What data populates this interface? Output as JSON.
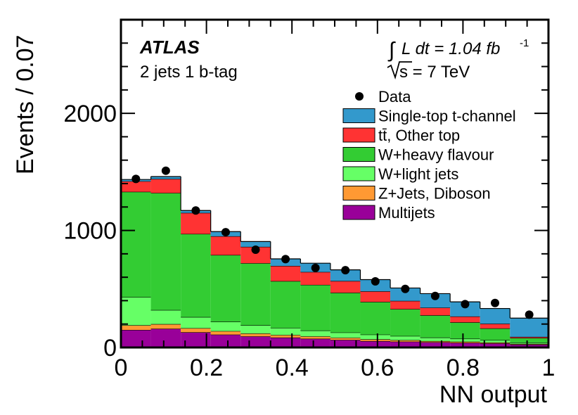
{
  "chart_data": {
    "type": "bar",
    "stacked": true,
    "histogram": true,
    "xlabel": "NN output",
    "ylabel": "Events / 0.07",
    "xlim": [
      0,
      1
    ],
    "ylim": [
      0,
      2800
    ],
    "xticks": [
      0,
      0.2,
      0.4,
      0.6,
      0.8,
      1
    ],
    "xtick_labels": [
      "0",
      "0.2",
      "0.4",
      "0.6",
      "0.8",
      "1"
    ],
    "yticks": [
      0,
      1000,
      2000
    ],
    "ytick_labels": [
      "0",
      "1000",
      "2000"
    ],
    "bin_edges": [
      0,
      0.07,
      0.14,
      0.21,
      0.28,
      0.35,
      0.42,
      0.49,
      0.56,
      0.63,
      0.7,
      0.77,
      0.84,
      0.91,
      1.0
    ],
    "series": [
      {
        "name": "Multijets",
        "color": "#990099",
        "values": [
          150,
          160,
          130,
          110,
          95,
          85,
          75,
          65,
          55,
          50,
          45,
          40,
          35,
          25
        ]
      },
      {
        "name": "Z+Jets, Diboson",
        "color": "#ff9933",
        "values": [
          40,
          40,
          35,
          30,
          25,
          22,
          20,
          18,
          15,
          13,
          10,
          10,
          8,
          6
        ]
      },
      {
        "name": "W+light jets",
        "color": "#66ff66",
        "values": [
          240,
          120,
          95,
          80,
          70,
          60,
          50,
          45,
          40,
          35,
          30,
          25,
          20,
          10
        ]
      },
      {
        "name": "W+heavy flavour",
        "color": "#33cc33",
        "values": [
          900,
          1000,
          710,
          570,
          530,
          400,
          390,
          340,
          280,
          230,
          190,
          140,
          100,
          40
        ]
      },
      {
        "name": "tt̄, Other top",
        "color": "#ff3333",
        "values": [
          90,
          120,
          180,
          160,
          140,
          130,
          110,
          100,
          90,
          70,
          65,
          50,
          40,
          10
        ]
      },
      {
        "name": "Single-top t-channel",
        "color": "#3399cc",
        "values": [
          15,
          20,
          20,
          40,
          45,
          60,
          75,
          95,
          100,
          110,
          120,
          125,
          130,
          160
        ]
      }
    ],
    "data_points": {
      "name": "Data",
      "x": [
        0.035,
        0.105,
        0.175,
        0.245,
        0.315,
        0.385,
        0.455,
        0.525,
        0.595,
        0.665,
        0.735,
        0.805,
        0.875,
        0.955
      ],
      "y": [
        1440,
        1510,
        1170,
        985,
        835,
        755,
        680,
        660,
        565,
        500,
        440,
        370,
        380,
        280
      ]
    },
    "legend": {
      "placement": "top-right",
      "entries": [
        {
          "label": "Data",
          "kind": "marker"
        },
        {
          "label": "Single-top t-channel",
          "kind": "box",
          "color": "#3399cc"
        },
        {
          "label": "tt̄, Other top",
          "kind": "box",
          "color": "#ff3333"
        },
        {
          "label": "W+heavy flavour",
          "kind": "box",
          "color": "#33cc33"
        },
        {
          "label": "W+light jets",
          "kind": "box",
          "color": "#66ff66"
        },
        {
          "label": "Z+Jets, Diboson",
          "kind": "box",
          "color": "#ff9933"
        },
        {
          "label": "Multijets",
          "kind": "box",
          "color": "#990099"
        }
      ]
    },
    "annotations": {
      "experiment": "ATLAS",
      "channel": "2 jets 1 b-tag",
      "lumi_prefix": "L dt = 1.04 fb",
      "lumi_exponent": "-1",
      "energy": "s = 7 TeV"
    }
  }
}
